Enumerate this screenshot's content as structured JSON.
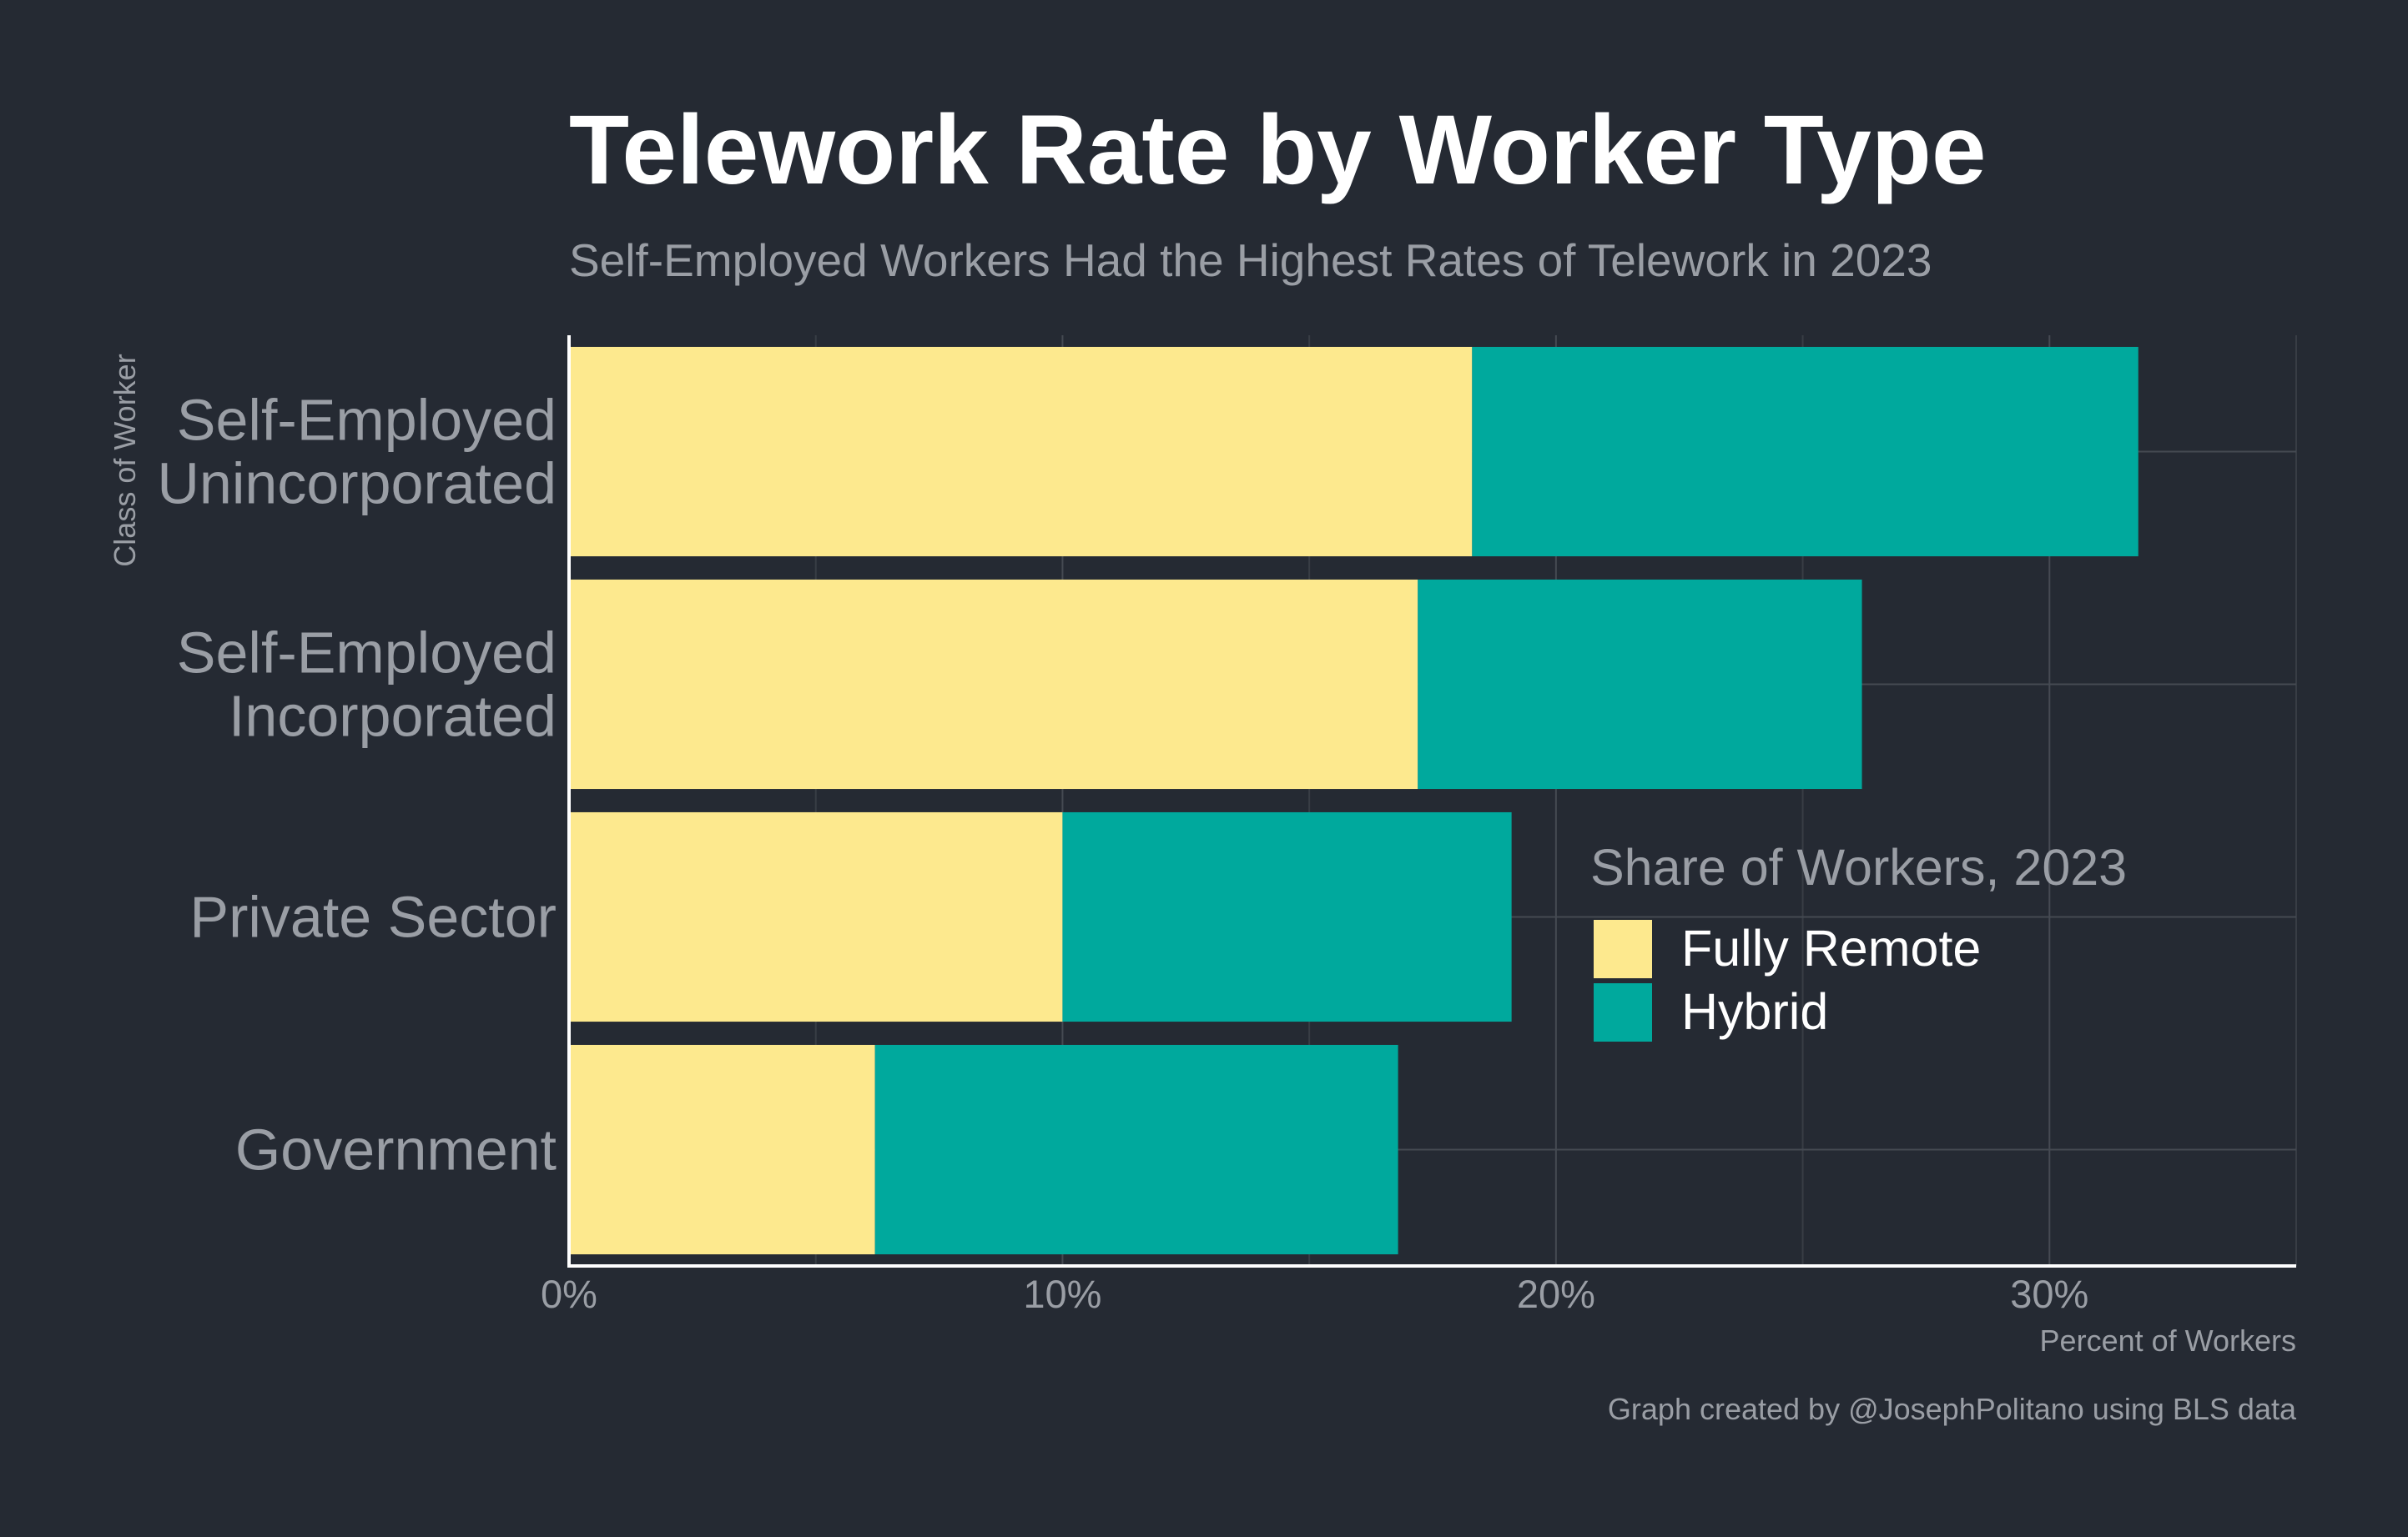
{
  "chart_data": {
    "type": "bar",
    "orientation": "horizontal",
    "stacked": true,
    "title": "Telework Rate by Worker Type",
    "subtitle": "Self-Employed Workers Had the Highest Rates of Telework in 2023",
    "ylabel": "Class of Worker",
    "xlabel": "Percent of Workers",
    "caption": "Graph created by @JosephPolitano using BLS data",
    "categories": [
      [
        "Self-Employed",
        "Unincorporated"
      ],
      [
        "Self-Employed",
        "Incorporated"
      ],
      [
        "Private Sector"
      ],
      [
        "Government"
      ]
    ],
    "series": [
      {
        "name": "Fully Remote",
        "color": "#fde98e",
        "values": [
          18.3,
          17.2,
          10.0,
          6.2
        ]
      },
      {
        "name": "Hybrid",
        "color": "#00a99d",
        "values": [
          13.5,
          9.0,
          9.1,
          10.6
        ]
      }
    ],
    "xlim": [
      0,
      35
    ],
    "xticks": [
      0,
      10,
      20,
      30
    ],
    "xtick_labels": [
      "0%",
      "10%",
      "20%",
      "30%"
    ],
    "legend": {
      "title": "Share of Workers, 2023",
      "position": "right"
    },
    "grid": true
  }
}
